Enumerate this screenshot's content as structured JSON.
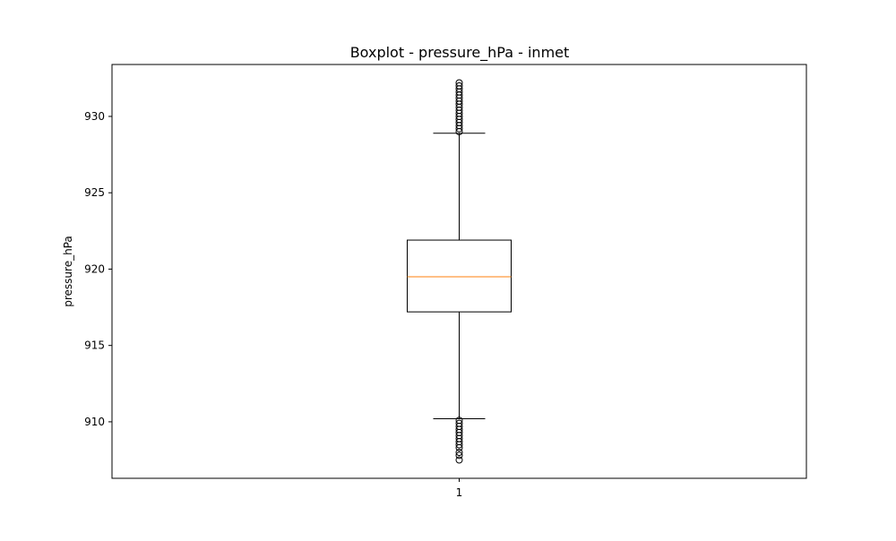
{
  "chart_data": {
    "type": "boxplot",
    "title": "Boxplot - pressure_hPa - inmet",
    "xlabel": "",
    "ylabel": "pressure_hPa",
    "categories": [
      "1"
    ],
    "ylim": [
      906.3,
      933.4
    ],
    "yticks": [
      910,
      915,
      920,
      925,
      930
    ],
    "ytick_labels": [
      "910",
      "915",
      "920",
      "925",
      "930"
    ],
    "grid": false,
    "boxes": [
      {
        "category": "1",
        "whisker_low": 910.2,
        "q1": 917.2,
        "median": 919.5,
        "q3": 921.9,
        "whisker_high": 928.9,
        "outliers_high": [
          929.0,
          929.2,
          929.4,
          929.6,
          929.8,
          930.0,
          930.2,
          930.4,
          930.6,
          930.8,
          931.0,
          931.2,
          931.4,
          931.6,
          931.8,
          932.0,
          932.2
        ],
        "outliers_low": [
          910.1,
          909.9,
          909.7,
          909.5,
          909.3,
          909.1,
          908.9,
          908.7,
          908.5,
          908.3,
          908.0,
          907.8,
          907.5
        ]
      }
    ],
    "colors": {
      "box": "#000000",
      "median": "#ff7f0e",
      "outlier_edge": "#000000"
    }
  }
}
